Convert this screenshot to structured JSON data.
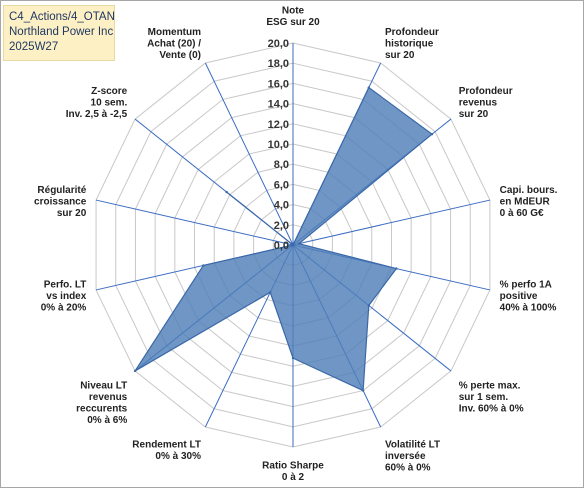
{
  "header": {
    "line1": "C4_Actions/4_OTAN",
    "line2": "Northland Power Inc",
    "line3": "2025W27"
  },
  "colors": {
    "fill": "#4f7fb8",
    "stroke": "#3b68a8",
    "grid": "#c8c8c8",
    "spoke": "#3b6cc2",
    "title_bg": "#fdf0c4",
    "title_text": "#1f3864"
  },
  "chart_data": {
    "type": "radar",
    "title": "",
    "range": [
      0,
      20
    ],
    "tick_step": 2,
    "tick_labels": [
      "0,0",
      "2,0",
      "4,0",
      "6,0",
      "8,0",
      "10,0",
      "12,0",
      "14,0",
      "16,0",
      "18,0",
      "20,0"
    ],
    "axes": [
      {
        "label": [
          "Note",
          "ESG sur 20"
        ],
        "value": 0
      },
      {
        "label": [
          "Profondeur",
          "historique",
          "sur 20"
        ],
        "value": 17.3
      },
      {
        "label": [
          "Profondeur",
          "revenus",
          "sur 20"
        ],
        "value": 17.6
      },
      {
        "label": [
          "Capi. bours.",
          "en MdEUR",
          "0 à 60 G€"
        ],
        "value": 0.6
      },
      {
        "label": [
          "% perfo 1A",
          "positive",
          "40% à 100%"
        ],
        "value": 10.5
      },
      {
        "label": [
          "% perte max.",
          "sur 1 sem.",
          "Inv. 60% à 0%"
        ],
        "value": 9.6
      },
      {
        "label": [
          "Volatilité LT",
          "inversée",
          "60% à 0%"
        ],
        "value": 16.0
      },
      {
        "label": [
          "Ratio Sharpe",
          "0 à 2"
        ],
        "value": 11.2
      },
      {
        "label": [
          "Rendement LT",
          "0% à 30%"
        ],
        "value": 5.2
      },
      {
        "label": [
          "Niveau LT",
          "revenus",
          "reccurents",
          "0% à 6%"
        ],
        "value": 20.0
      },
      {
        "label": [
          "Perfo. LT",
          "vs index",
          "0% à 20%"
        ],
        "value": 9.1
      },
      {
        "label": [
          "Régularité",
          "croissance",
          "sur 20"
        ],
        "value": 0
      },
      {
        "label": [
          "Z-score",
          "10 sem.",
          "Inv. 2,5 à -2,5"
        ],
        "value": 8.4
      },
      {
        "label": [
          "Momentum",
          "Achat (20) /",
          "Vente (0)"
        ],
        "value": 0
      }
    ]
  }
}
